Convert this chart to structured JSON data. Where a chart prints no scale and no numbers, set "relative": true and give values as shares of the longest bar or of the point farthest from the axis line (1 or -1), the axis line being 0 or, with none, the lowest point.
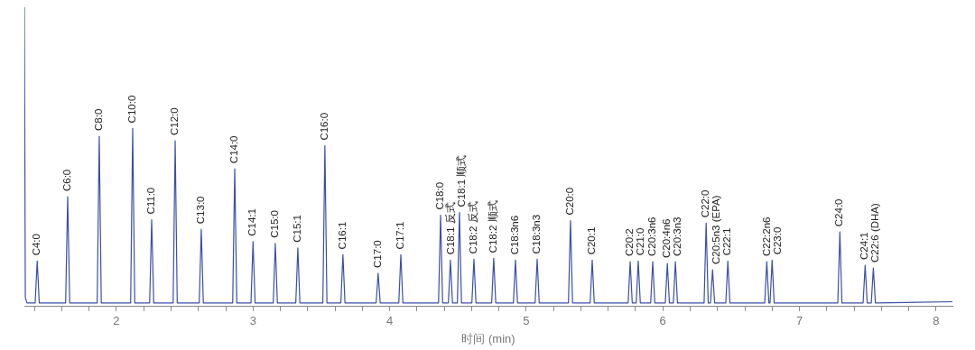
{
  "chart_data": {
    "type": "line",
    "xlabel": "时间 (min)",
    "relative": true,
    "grid": false,
    "legend": false,
    "marker": "none",
    "line_style": "solid",
    "tick_labels": "x",
    "xlim": [
      1.326,
      8.12
    ],
    "xticks": [
      {
        "value": 1.4,
        "label": null
      },
      {
        "value": 1.6,
        "label": null
      },
      {
        "value": 1.8,
        "label": null
      },
      2,
      {
        "value": 2.2,
        "label": null
      },
      {
        "value": 2.4,
        "label": null
      },
      {
        "value": 2.6,
        "label": null
      },
      {
        "value": 2.8,
        "label": null
      },
      3,
      {
        "value": 3.2,
        "label": null
      },
      {
        "value": 3.4,
        "label": null
      },
      {
        "value": 3.6,
        "label": null
      },
      {
        "value": 3.8,
        "label": null
      },
      4,
      {
        "value": 4.2,
        "label": null
      },
      {
        "value": 4.4,
        "label": null
      },
      {
        "value": 4.6,
        "label": null
      },
      {
        "value": 4.8,
        "label": null
      },
      5,
      {
        "value": 5.2,
        "label": null
      },
      {
        "value": 5.4,
        "label": null
      },
      {
        "value": 5.6,
        "label": null
      },
      {
        "value": 5.8,
        "label": null
      },
      6,
      {
        "value": 6.2,
        "label": null
      },
      {
        "value": 6.4,
        "label": null
      },
      {
        "value": 6.6,
        "label": null
      },
      {
        "value": 6.8,
        "label": null
      },
      7,
      {
        "value": 7.2,
        "label": null
      },
      {
        "value": 7.4,
        "label": null
      },
      {
        "value": 7.6,
        "label": null
      },
      {
        "value": 7.8,
        "label": null
      },
      8
    ],
    "series": [
      {
        "color": "#3b4fa8",
        "x": [
          1.326,
          1.333,
          1.345,
          1.405,
          1.42,
          1.435,
          1.628,
          1.643,
          1.658,
          1.859,
          1.874,
          1.889,
          2.104,
          2.119,
          2.134,
          2.243,
          2.258,
          2.273,
          2.415,
          2.43,
          2.445,
          2.606,
          2.621,
          2.636,
          2.851,
          2.866,
          2.881,
          2.985,
          3.0,
          3.015,
          3.148,
          3.163,
          3.178,
          3.313,
          3.328,
          3.343,
          3.511,
          3.526,
          3.541,
          3.643,
          3.658,
          3.673,
          3.901,
          3.916,
          3.931,
          4.067,
          4.082,
          4.097,
          4.358,
          4.373,
          4.388,
          4.43,
          4.445,
          4.46,
          4.496,
          4.511,
          4.526,
          4.602,
          4.617,
          4.632,
          4.747,
          4.762,
          4.777,
          4.906,
          4.921,
          4.936,
          5.065,
          5.08,
          5.095,
          5.309,
          5.324,
          5.339,
          5.468,
          5.483,
          5.498,
          5.746,
          5.761,
          5.776,
          5.805,
          5.82,
          5.835,
          5.911,
          5.926,
          5.941,
          6.018,
          6.033,
          6.048,
          6.077,
          6.092,
          6.107,
          6.302,
          6.317,
          6.332,
          6.349,
          6.364,
          6.379,
          6.461,
          6.476,
          6.491,
          6.746,
          6.761,
          6.776,
          6.785,
          6.8,
          6.815,
          7.281,
          7.296,
          7.311,
          7.466,
          7.481,
          7.496,
          7.526,
          7.541,
          7.556,
          8.12
        ],
        "values": [
          1.0,
          0.03,
          0.012,
          0.012,
          0.152,
          0.012,
          0.012,
          0.367,
          0.012,
          0.012,
          0.569,
          0.012,
          0.012,
          0.595,
          0.012,
          0.012,
          0.29,
          0.012,
          0.012,
          0.554,
          0.012,
          0.012,
          0.258,
          0.012,
          0.012,
          0.46,
          0.012,
          0.012,
          0.217,
          0.012,
          0.012,
          0.211,
          0.012,
          0.012,
          0.196,
          0.012,
          0.012,
          0.537,
          0.012,
          0.012,
          0.173,
          0.012,
          0.012,
          0.111,
          0.012,
          0.012,
          0.173,
          0.012,
          0.012,
          0.305,
          0.012,
          0.012,
          0.155,
          0.012,
          0.012,
          0.314,
          0.012,
          0.012,
          0.158,
          0.012,
          0.012,
          0.161,
          0.012,
          0.012,
          0.155,
          0.012,
          0.012,
          0.158,
          0.012,
          0.012,
          0.287,
          0.012,
          0.012,
          0.155,
          0.012,
          0.012,
          0.15,
          0.012,
          0.012,
          0.152,
          0.012,
          0.012,
          0.15,
          0.012,
          0.012,
          0.144,
          0.012,
          0.012,
          0.15,
          0.012,
          0.012,
          0.279,
          0.012,
          0.012,
          0.123,
          0.012,
          0.012,
          0.152,
          0.012,
          0.012,
          0.15,
          0.012,
          0.012,
          0.155,
          0.012,
          0.012,
          0.249,
          0.012,
          0.012,
          0.138,
          0.012,
          0.012,
          0.129,
          0.012,
          0.016
        ]
      }
    ],
    "annotations": [
      {
        "text": "C4:0",
        "x": 1.42,
        "y": 0.152
      },
      {
        "text": "C6:0",
        "x": 1.643,
        "y": 0.367
      },
      {
        "text": "C8:0",
        "x": 1.874,
        "y": 0.569
      },
      {
        "text": "C10:0",
        "x": 2.119,
        "y": 0.595
      },
      {
        "text": "C11:0",
        "x": 2.258,
        "y": 0.29
      },
      {
        "text": "C12:0",
        "x": 2.43,
        "y": 0.554
      },
      {
        "text": "C13:0",
        "x": 2.621,
        "y": 0.258
      },
      {
        "text": "C14:0",
        "x": 2.866,
        "y": 0.46
      },
      {
        "text": "C14:1",
        "x": 3.0,
        "y": 0.217
      },
      {
        "text": "C15:0",
        "x": 3.163,
        "y": 0.211
      },
      {
        "text": "C15:1",
        "x": 3.328,
        "y": 0.196
      },
      {
        "text": "C16:0",
        "x": 3.526,
        "y": 0.537
      },
      {
        "text": "C16:1",
        "x": 3.658,
        "y": 0.173
      },
      {
        "text": "C17:0",
        "x": 3.916,
        "y": 0.111
      },
      {
        "text": "C17:1",
        "x": 4.082,
        "y": 0.173
      },
      {
        "text": "C18:0",
        "x": 4.373,
        "y": 0.305
      },
      {
        "text": "C18:1 反式",
        "x": 4.445,
        "y": 0.155
      },
      {
        "text": "C18:1 顺式",
        "x": 4.511,
        "y": 0.314
      },
      {
        "text": "C18:2 反式",
        "x": 4.617,
        "y": 0.158
      },
      {
        "text": "C18:2 顺式",
        "x": 4.762,
        "y": 0.161
      },
      {
        "text": "C18:3n6",
        "x": 4.921,
        "y": 0.155
      },
      {
        "text": "C18:3n3",
        "x": 5.08,
        "y": 0.158
      },
      {
        "text": "C20:0",
        "x": 5.324,
        "y": 0.287
      },
      {
        "text": "C20:1",
        "x": 5.483,
        "y": 0.155
      },
      {
        "text": "C20:2",
        "x": 5.761,
        "y": 0.15
      },
      {
        "text": "C21:0",
        "x": 5.82,
        "y": 0.152
      },
      {
        "text": "C20:3n6",
        "x": 5.926,
        "y": 0.15
      },
      {
        "text": "C20:4n6",
        "x": 6.033,
        "y": 0.144
      },
      {
        "text": "C20:3n3",
        "x": 6.092,
        "y": 0.15
      },
      {
        "text": "C22:0",
        "x": 6.317,
        "y": 0.279
      },
      {
        "text": "C20:5n3 (EPA)",
        "x": 6.364,
        "y": 0.123
      },
      {
        "text": "C22:1",
        "x": 6.476,
        "y": 0.152
      },
      {
        "text": "C22:2n6",
        "x": 6.761,
        "y": 0.15
      },
      {
        "text": "C23:0",
        "x": 6.8,
        "y": 0.155
      },
      {
        "text": "C24:0",
        "x": 7.296,
        "y": 0.249
      },
      {
        "text": "C24:1",
        "x": 7.481,
        "y": 0.138
      },
      {
        "text": "C22:6 (DHA)",
        "x": 7.541,
        "y": 0.129
      }
    ]
  }
}
